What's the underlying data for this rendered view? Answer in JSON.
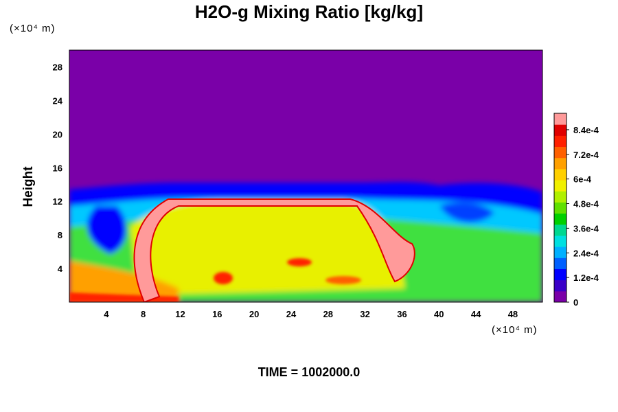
{
  "chart_data": {
    "type": "heatmap",
    "title": "H2O-g Mixing Ratio [kg/kg]",
    "ylabel": "Height",
    "x_unit": "(×10⁴ m)",
    "y_unit": "(×10⁴ m)",
    "x_ticks": [
      "4",
      "8",
      "12",
      "16",
      "20",
      "24",
      "28",
      "32",
      "36",
      "40",
      "44",
      "48"
    ],
    "y_ticks": [
      "4",
      "8",
      "12",
      "16",
      "20",
      "24",
      "28"
    ],
    "xlim": [
      0,
      51.2
    ],
    "ylim": [
      0,
      30
    ],
    "colorbar": {
      "min": 0,
      "max": 0.00092,
      "labels": [
        "8.4e-4",
        "7.2e-4",
        "6e-4",
        "4.8e-4",
        "3.6e-4",
        "2.4e-4",
        "1.2e-4",
        "0"
      ],
      "label_values": [
        0.00084,
        0.00072,
        0.0006,
        0.00048,
        0.00036,
        0.00024,
        0.00012,
        0
      ],
      "colors": [
        "#7a00a8",
        "#3a00c8",
        "#0000ff",
        "#0060ff",
        "#00b0ff",
        "#00e0e0",
        "#00d890",
        "#00d000",
        "#60e000",
        "#b0f000",
        "#f0f000",
        "#ffd000",
        "#ffa000",
        "#ff6000",
        "#ff2000",
        "#e00000",
        "#ff9a9a"
      ]
    },
    "field_notes": "Dry upper atmosphere near 0 above ~13; moist layer (4e-4 to 7e-4) below ~13; saturated pink arc from x≈8 to x≈36"
  },
  "footer": {
    "time_label": "TIME = 1002000.0"
  }
}
